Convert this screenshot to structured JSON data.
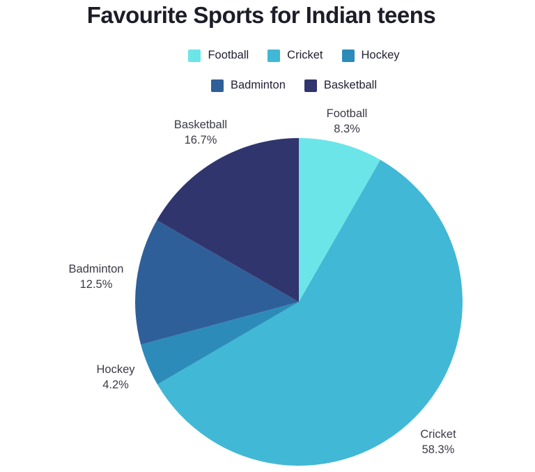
{
  "title": "Favourite Sports for Indian teens",
  "chart_data": {
    "type": "pie",
    "title": "Favourite Sports for Indian teens",
    "labels": [
      "Football",
      "Cricket",
      "Hockey",
      "Badminton",
      "Basketball"
    ],
    "values": [
      8.3,
      58.3,
      4.2,
      12.5,
      16.7
    ],
    "percent_labels": [
      "8.3%",
      "58.3%",
      "4.2%",
      "12.5%",
      "16.7%"
    ],
    "colors": [
      "#6ce5e8",
      "#41b8d5",
      "#2d8bba",
      "#2f5f98",
      "#31356e"
    ],
    "start_angle_deg": 0,
    "direction": "clockwise",
    "legend_position": "top",
    "legend_rows": [
      [
        "Football",
        "Cricket",
        "Hockey"
      ],
      [
        "Badminton",
        "Basketball"
      ]
    ],
    "slice_label_format": "name + percent",
    "background_color": "#ffffff",
    "title_color": "#1d1d29",
    "label_color": "#3a3a47"
  }
}
